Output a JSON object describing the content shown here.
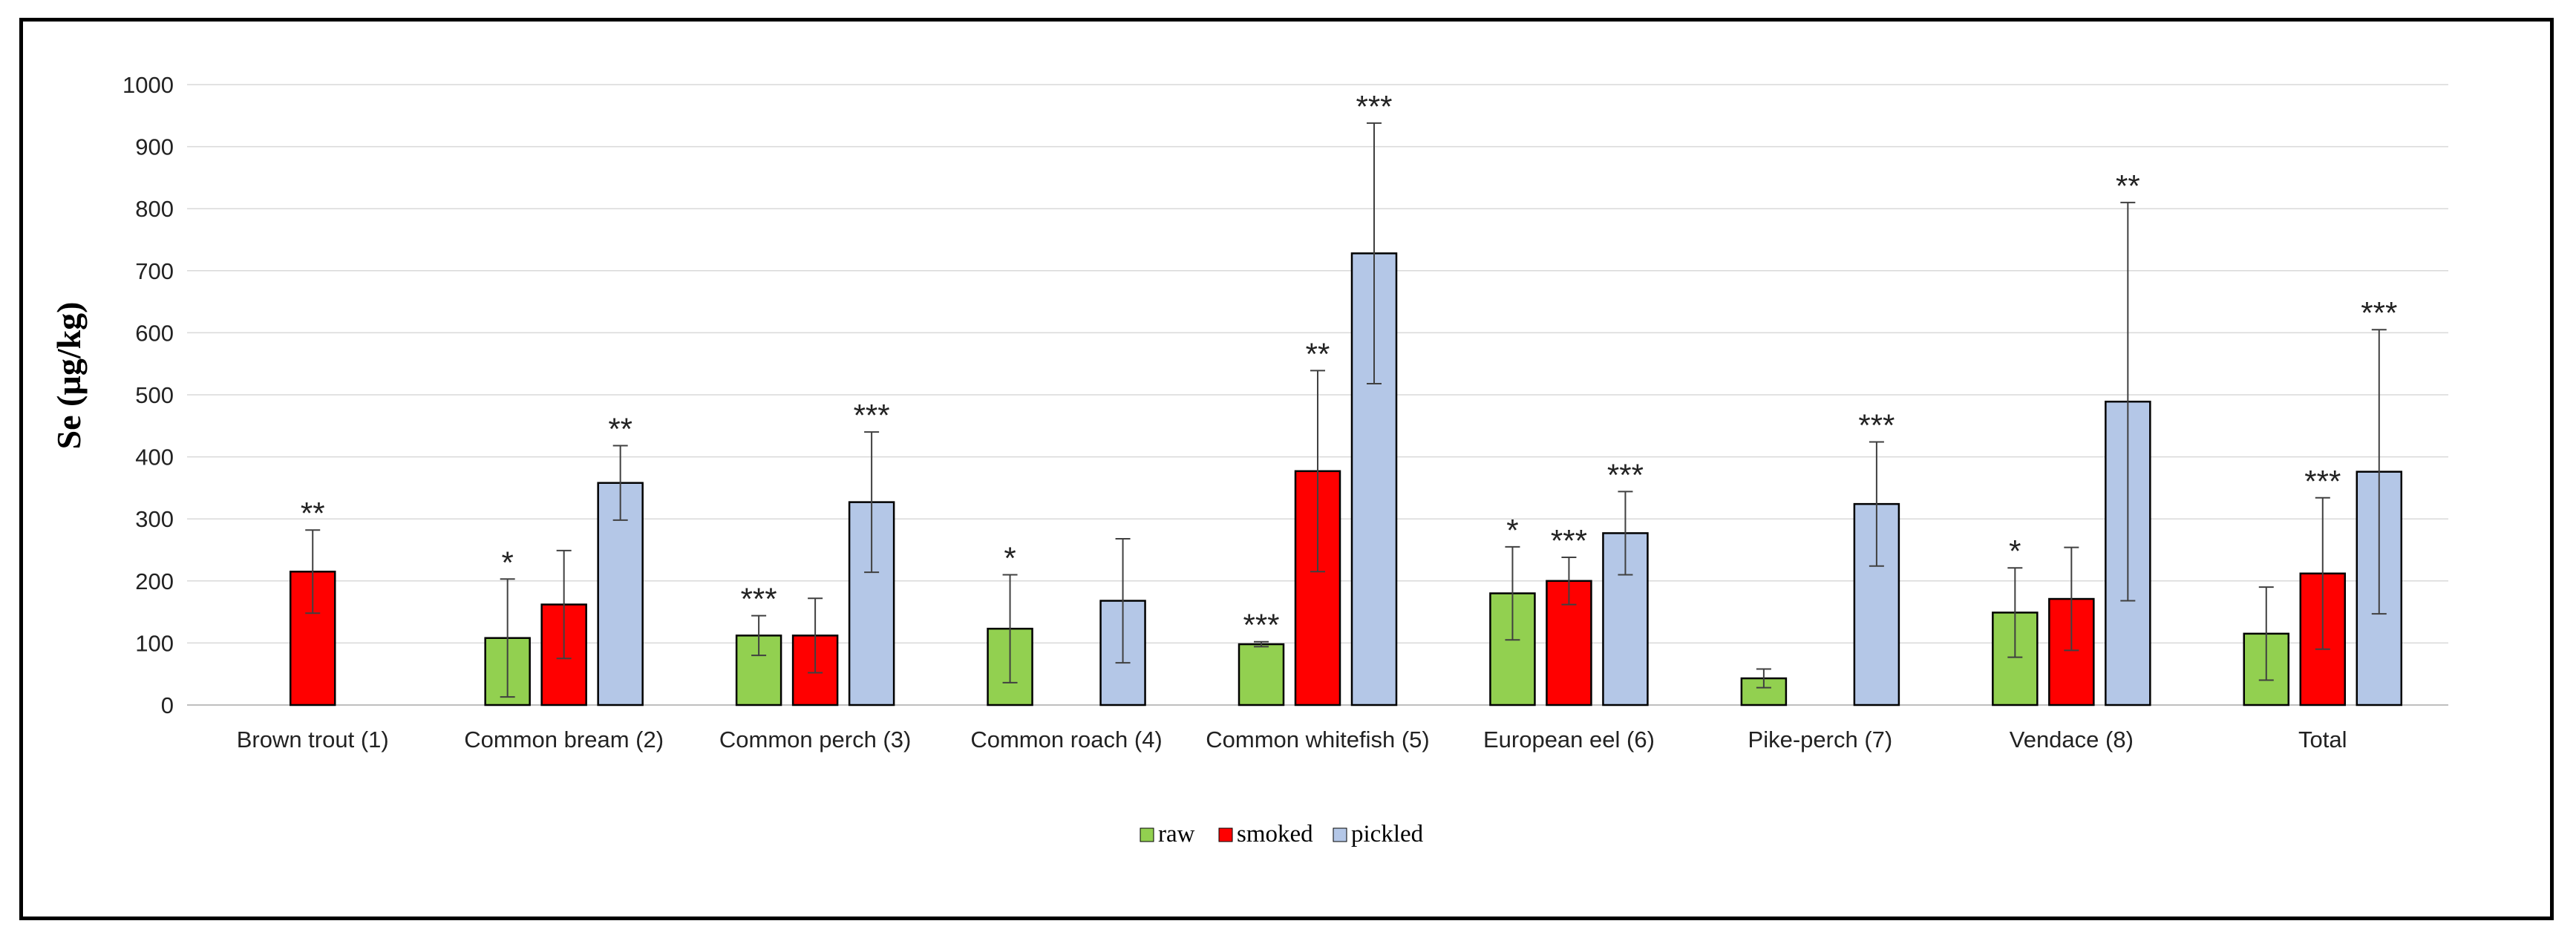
{
  "chart_data": {
    "type": "bar",
    "title": "",
    "xlabel": "",
    "ylabel": "Se (µg/kg)",
    "ylim": [
      0,
      1000
    ],
    "yticks": [
      0,
      100,
      200,
      300,
      400,
      500,
      600,
      700,
      800,
      900,
      1000
    ],
    "grid": true,
    "legend_position": "bottom-center",
    "categories": [
      "Brown trout (1)",
      "Common bream (2)",
      "Common perch (3)",
      "Common roach (4)",
      "Common whitefish (5)",
      "European eel (6)",
      "Pike-perch (7)",
      "Vendace (8)",
      "Total"
    ],
    "series": [
      {
        "name": "raw",
        "color": "#92d050",
        "values": [
          null,
          108,
          112,
          123,
          98,
          180,
          43,
          149,
          115
        ],
        "errors": [
          null,
          95,
          32,
          87,
          4,
          75,
          15,
          72,
          75
        ],
        "significance": [
          "",
          "*",
          "***",
          "*",
          "***",
          "*",
          "",
          "*",
          ""
        ]
      },
      {
        "name": "smoked",
        "color": "#ff0000",
        "values": [
          215,
          162,
          112,
          null,
          377,
          200,
          0,
          171,
          212
        ],
        "errors": [
          67,
          87,
          60,
          null,
          162,
          38,
          0,
          83,
          122
        ],
        "significance": [
          "**",
          "",
          "",
          "",
          "**",
          "***",
          "",
          "",
          "***"
        ]
      },
      {
        "name": "pickled",
        "color": "#b4c7e7",
        "values": [
          null,
          358,
          327,
          168,
          728,
          277,
          324,
          489,
          376
        ],
        "errors": [
          null,
          60,
          113,
          100,
          210,
          67,
          100,
          321,
          229
        ],
        "significance": [
          "",
          "**",
          "***",
          "",
          "***",
          "***",
          "***",
          "**",
          "***"
        ]
      }
    ]
  }
}
